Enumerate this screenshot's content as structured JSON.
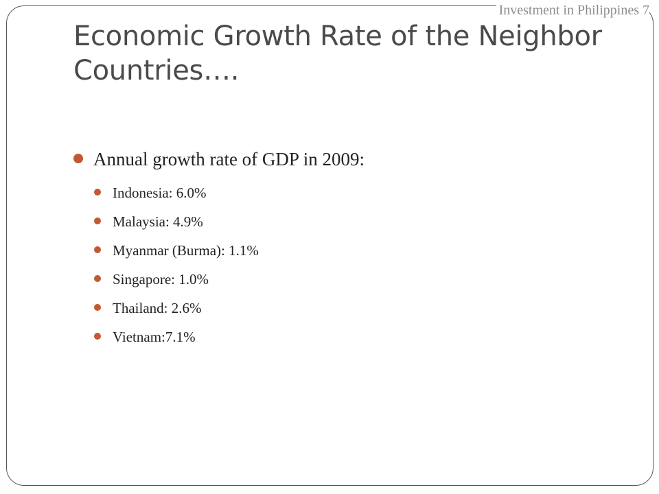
{
  "header": {
    "text": "Investment in Philippines 7"
  },
  "title": "Economic Growth Rate of the Neighbor Countries….",
  "colors": {
    "bullet": "#c25834",
    "title": "#4a4a4a",
    "frame": "#555555"
  },
  "main_bullet": {
    "icon": "bullet-dot",
    "text": "Annual growth rate of GDP in 2009:"
  },
  "items": [
    {
      "text": "Indonesia: 6.0%"
    },
    {
      "text": "Malaysia: 4.9%"
    },
    {
      "text": "Myanmar (Burma): 1.1%"
    },
    {
      "text": "Singapore: 1.0%"
    },
    {
      "text": "Thailand: 2.6%"
    },
    {
      "text": "Vietnam:7.1%"
    }
  ]
}
